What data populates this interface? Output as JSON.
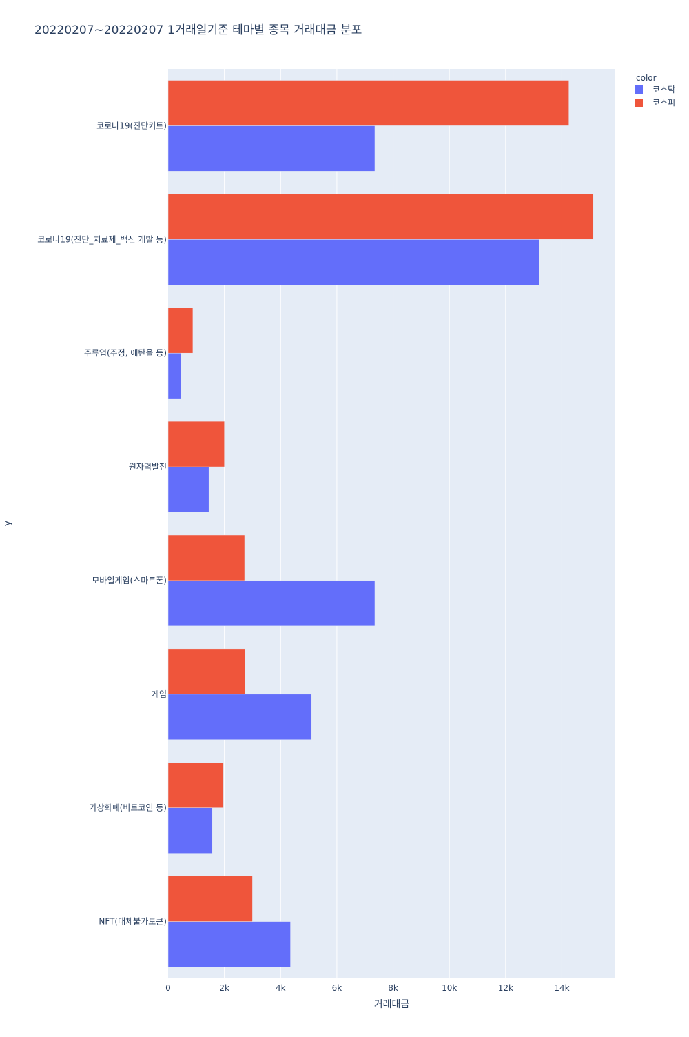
{
  "chart_data": {
    "type": "bar",
    "orientation": "horizontal",
    "barmode": "group",
    "title": "20220207~20220207 1거래일기준 테마별 종목 거래대금 분포",
    "xlabel": "거래대금",
    "ylabel": "y",
    "xlim": [
      0,
      15900
    ],
    "x_ticks": [
      0,
      2000,
      4000,
      6000,
      8000,
      10000,
      12000,
      14000
    ],
    "x_tick_labels": [
      "0",
      "2k",
      "4k",
      "6k",
      "8k",
      "10k",
      "12k",
      "14k"
    ],
    "grid": true,
    "legend_title": "color",
    "legend_position": "top-right",
    "categories": [
      "코로나19(진단키트)",
      "코로나19(진단_치료제_백신 개발 등)",
      "주류업(주정, 에탄올 등)",
      "원자력발전",
      "모바일게임(스마트폰)",
      "게임",
      "가상화폐(비트코인 등)",
      "NFT(대체불가토큰)"
    ],
    "series": [
      {
        "name": "코스닥",
        "color": "#636efa",
        "values": [
          7350,
          13200,
          450,
          1450,
          7350,
          5100,
          1570,
          4350
        ]
      },
      {
        "name": "코스피",
        "color": "#ef553b",
        "values": [
          14250,
          15120,
          880,
          2000,
          2720,
          2730,
          1970,
          3000
        ]
      }
    ],
    "colors": {
      "plot_background": "#e5ecf6",
      "grid": "#ffffff",
      "text": "#2a3f5f"
    }
  }
}
